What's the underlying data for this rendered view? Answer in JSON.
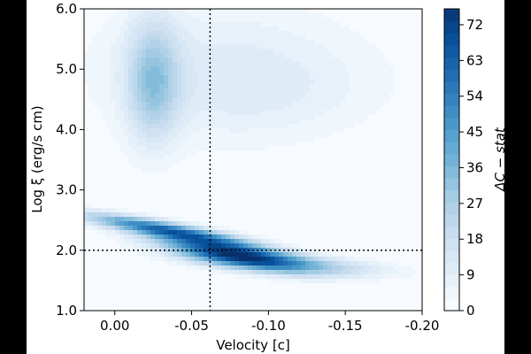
{
  "chart_data": {
    "type": "heatmap",
    "xlabel": "Velocity [c]",
    "ylabel": "Log ξ (erg/s cm)",
    "colorbar_label": "ΔC − stat",
    "x_axis": {
      "range": [
        0.02,
        -0.2
      ],
      "ticks": [
        {
          "value": 0.0,
          "label": "0.00"
        },
        {
          "value": -0.05,
          "label": "-0.05"
        },
        {
          "value": -0.1,
          "label": "-0.10"
        },
        {
          "value": -0.15,
          "label": "-0.15"
        },
        {
          "value": -0.2,
          "label": "-0.20"
        }
      ]
    },
    "y_axis": {
      "range": [
        1.0,
        6.0
      ],
      "ticks": [
        {
          "value": 1.0,
          "label": "1.0"
        },
        {
          "value": 2.0,
          "label": "2.0"
        },
        {
          "value": 3.0,
          "label": "3.0"
        },
        {
          "value": 4.0,
          "label": "4.0"
        },
        {
          "value": 5.0,
          "label": "5.0"
        },
        {
          "value": 6.0,
          "label": "6.0"
        }
      ]
    },
    "colorbar": {
      "range": [
        0,
        76
      ],
      "ticks": [
        {
          "value": 0,
          "label": "0"
        },
        {
          "value": 9,
          "label": "9"
        },
        {
          "value": 18,
          "label": "18"
        },
        {
          "value": 27,
          "label": "27"
        },
        {
          "value": 36,
          "label": "36"
        },
        {
          "value": 45,
          "label": "45"
        },
        {
          "value": 54,
          "label": "54"
        },
        {
          "value": 63,
          "label": "63"
        },
        {
          "value": 72,
          "label": "72"
        }
      ],
      "colors": [
        "#f7fbff",
        "#deebf7",
        "#c6dbef",
        "#9ecae1",
        "#6baed6",
        "#4292c6",
        "#2171b5",
        "#08519c",
        "#08306b"
      ]
    },
    "best_fit": {
      "x": -0.062,
      "y": 2.0
    },
    "regions": [
      {
        "x": -0.025,
        "y": 4.8,
        "sx": 0.012,
        "sy": 0.7,
        "rho": 0,
        "value": 28
      },
      {
        "x": -0.07,
        "y": 5.1,
        "sx": 0.06,
        "sy": 0.75,
        "rho": 0,
        "value": 9
      },
      {
        "x": -0.1,
        "y": 4.5,
        "sx": 0.055,
        "sy": 0.55,
        "rho": -0.2,
        "value": 5
      },
      {
        "x": -0.03,
        "y": 2.35,
        "sx": 0.035,
        "sy": 0.18,
        "rho": 0.85,
        "value": 55
      },
      {
        "x": -0.075,
        "y": 1.95,
        "sx": 0.032,
        "sy": 0.2,
        "rho": 0.7,
        "value": 68
      },
      {
        "x": -0.11,
        "y": 1.8,
        "sx": 0.04,
        "sy": 0.12,
        "rho": 0.5,
        "value": 22
      },
      {
        "x": -0.14,
        "y": 1.65,
        "sx": 0.03,
        "sy": 0.1,
        "rho": 0.3,
        "value": 7
      }
    ]
  }
}
